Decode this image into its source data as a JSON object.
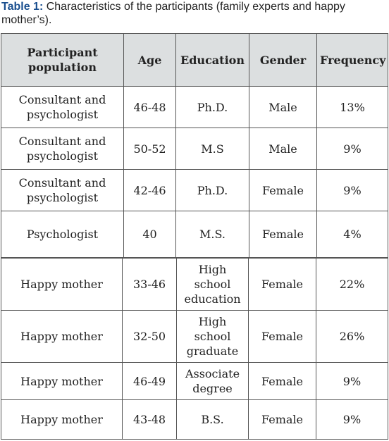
{
  "caption": {
    "label": "Table 1:",
    "text": " Characteristics of the participants (family experts and happy mother’s)."
  },
  "table": {
    "headers": [
      "Participant population",
      "Age",
      "Education",
      "Gender",
      "Frequency"
    ],
    "rows_part1": [
      [
        "Consultant and psychologist",
        "46-48",
        "Ph.D.",
        "Male",
        "13%"
      ],
      [
        "Consultant and psychologist",
        "50-52",
        "M.S",
        "Male",
        "9%"
      ],
      [
        "Consultant and psychologist",
        "42-46",
        "Ph.D.",
        "Female",
        "9%"
      ],
      [
        "Psychologist",
        "40",
        "M.S.",
        "Female",
        "4%"
      ]
    ],
    "rows_part2": [
      [
        "Happy mother",
        "33-46",
        "High school education",
        "Female",
        "22%"
      ],
      [
        "Happy mother",
        "32-50",
        "High school graduate",
        "Female",
        "26%"
      ],
      [
        "Happy mother",
        "46-49",
        "Associate degree",
        "Female",
        "9%"
      ],
      [
        "Happy mother",
        "43-48",
        "B.S.",
        "Female",
        "9%"
      ]
    ]
  }
}
